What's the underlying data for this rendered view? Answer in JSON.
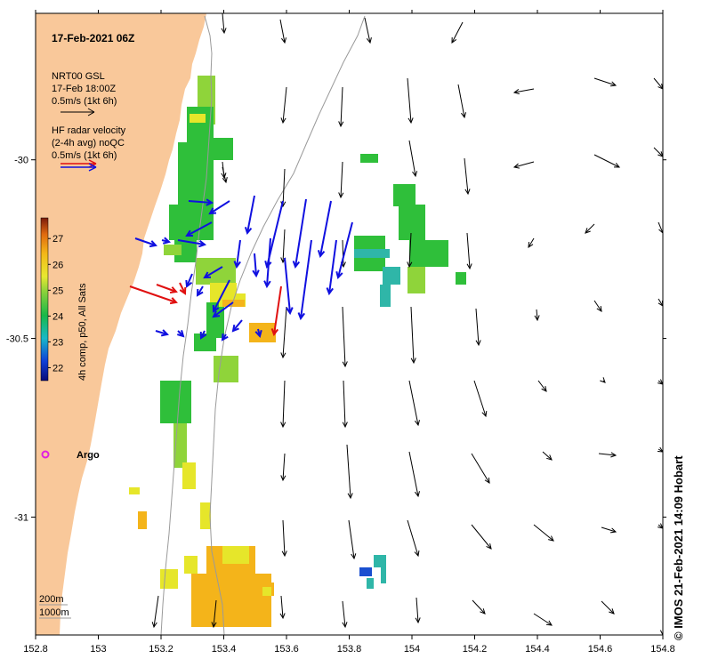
{
  "map": {
    "title": "17-Feb-2021 06Z",
    "lon_range": [
      152.8,
      154.8
    ],
    "lat_range": [
      -31.33,
      -29.59
    ],
    "x_ticks": [
      "152.8",
      "153",
      "153.2",
      "153.4",
      "153.6",
      "153.8",
      "154",
      "154.2",
      "154.4",
      "154.6",
      "154.8"
    ],
    "y_ticks": [
      "-30",
      "-30.5",
      "-31"
    ],
    "land_color": "#f9c89a",
    "current_color": "#000000",
    "radar_color": "#1010e0",
    "radar_highlight_color": "#e01010",
    "legend": {
      "model_line1": "NRT00 GSL",
      "model_line2": "17-Feb 18:00Z",
      "model_line3": "0.5m/s (1kt 6h)",
      "radar_line1": "HF radar velocity",
      "radar_line2": "(2-4h avg) noQC",
      "radar_line3": "0.5m/s (1kt 6h)"
    },
    "colorbar": {
      "label": "4h comp, p50, All Sats",
      "ticks": [
        "27",
        "26",
        "25",
        "24",
        "23",
        "22"
      ],
      "range": [
        21.5,
        27.8
      ]
    },
    "isobaths": {
      "label1": "200m",
      "label2": "1000m"
    },
    "argo_label": "Argo",
    "credit": "© IMOS 21-Feb-2021 14:09 Hobart"
  }
}
